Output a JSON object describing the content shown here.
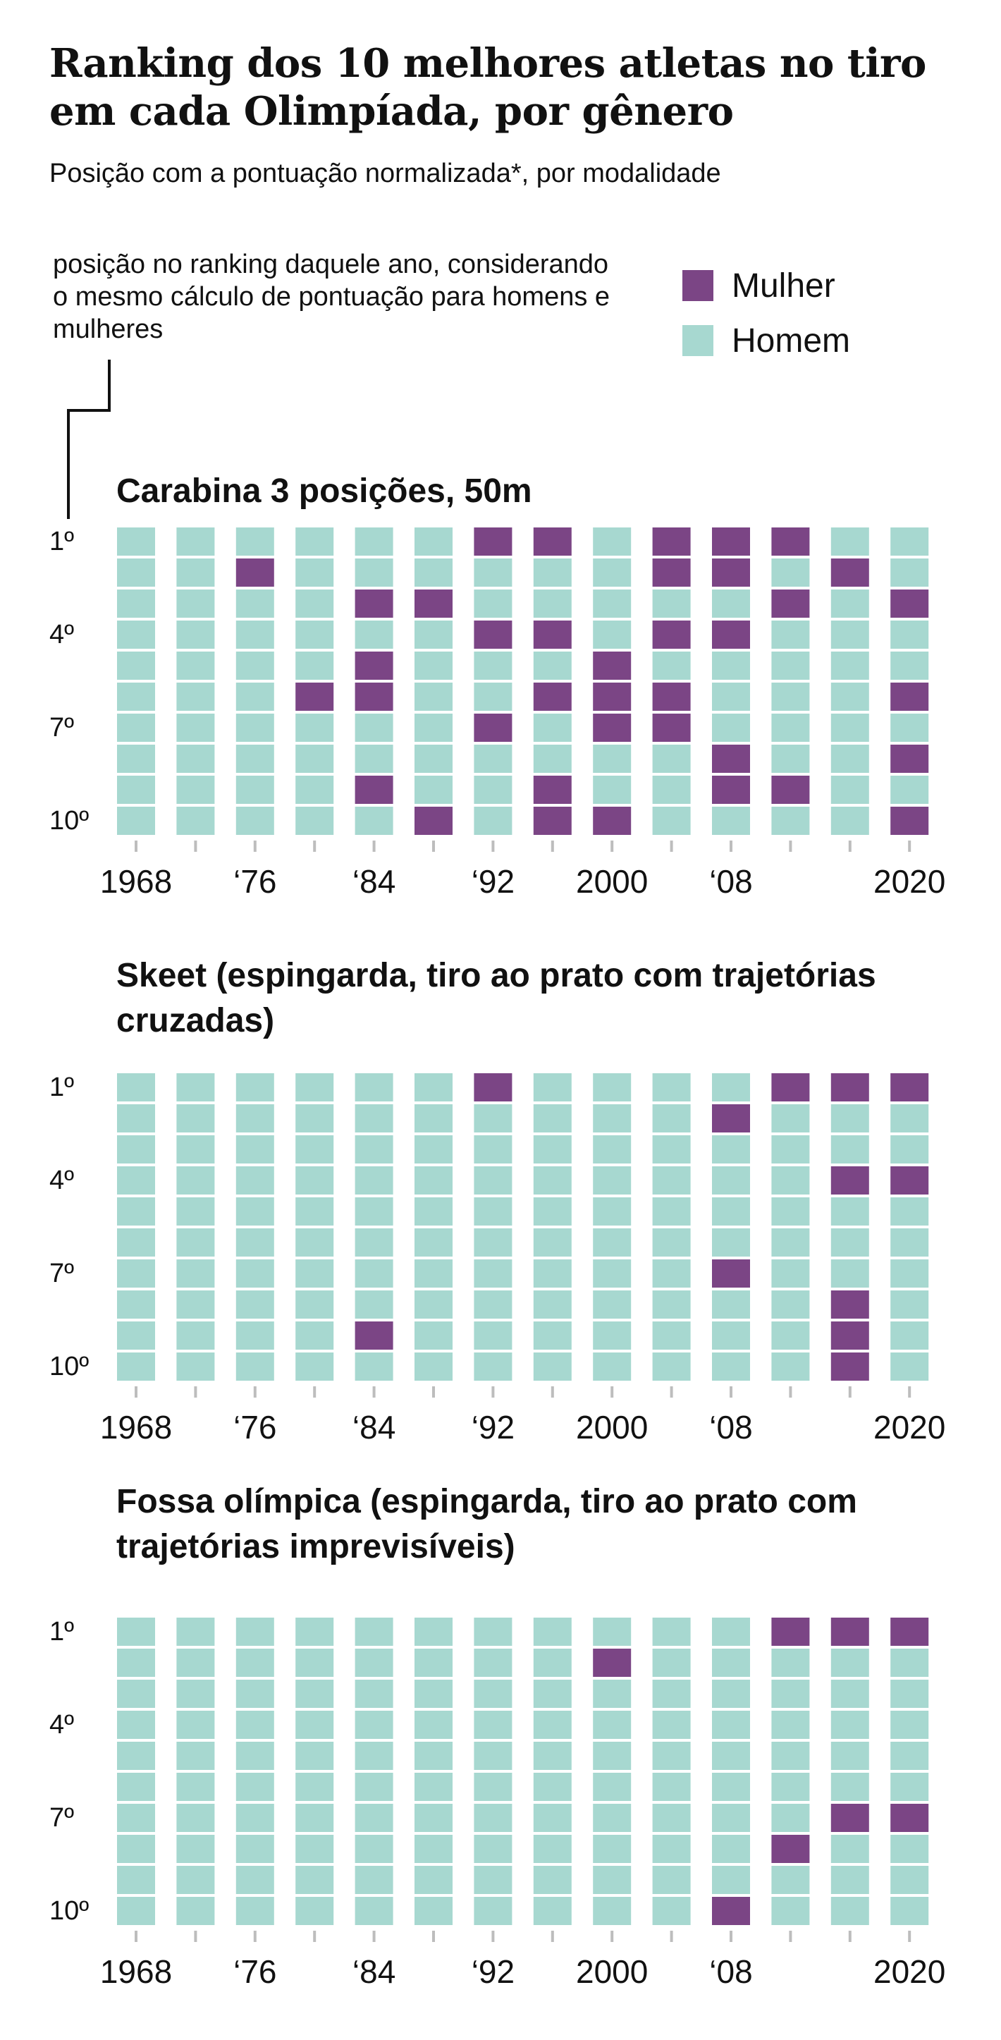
{
  "title": "Ranking dos 10 melhores atletas no tiro em cada Olimpíada, por gênero",
  "subtitle": "Posição com a pontuação normalizada*, por modalidade",
  "note": "posição no ranking daquele ano, considerando o mesmo cálculo de pontuação para homens e mulheres",
  "legend": [
    {
      "label": "Mulher",
      "color": "#7b4585"
    },
    {
      "label": "Homem",
      "color": "#a7d8d0"
    }
  ],
  "colors": {
    "woman": "#7b4585",
    "man": "#a7d8d0",
    "axis": "#bdbdbd",
    "leader": "#111111"
  },
  "chart_data": [
    {
      "type": "waffle",
      "title": "Carabina 3 posições, 50m",
      "subtitle": "",
      "years": [
        1968,
        1972,
        1976,
        1980,
        1984,
        1988,
        1992,
        1996,
        2000,
        2004,
        2008,
        2012,
        2016,
        2020
      ],
      "x_tick_labels": [
        "1968",
        "",
        "‘76",
        "",
        "‘84",
        "",
        "‘92",
        "",
        "2000",
        "",
        "‘08",
        "",
        "",
        "2020"
      ],
      "y_tick_labels": [
        "1º",
        "",
        "",
        "4º",
        "",
        "",
        "7º",
        "",
        "",
        "10º"
      ],
      "women_positions": [
        [],
        [],
        [
          2
        ],
        [
          6
        ],
        [
          3,
          5,
          6,
          9
        ],
        [
          3,
          10
        ],
        [
          1,
          4,
          7
        ],
        [
          1,
          4,
          6,
          9,
          10
        ],
        [
          5,
          6,
          7,
          10
        ],
        [
          1,
          2,
          4,
          6,
          7
        ],
        [
          1,
          2,
          4,
          8,
          9
        ],
        [
          1,
          3,
          9
        ],
        [
          2
        ],
        [
          3,
          6,
          8,
          10
        ]
      ]
    },
    {
      "type": "waffle",
      "title": "Skeet",
      "subtitle": "(espingarda, tiro ao prato com trajetórias cruzadas)",
      "years": [
        1968,
        1972,
        1976,
        1980,
        1984,
        1988,
        1992,
        1996,
        2000,
        2004,
        2008,
        2012,
        2016,
        2020
      ],
      "x_tick_labels": [
        "1968",
        "",
        "‘76",
        "",
        "‘84",
        "",
        "‘92",
        "",
        "2000",
        "",
        "‘08",
        "",
        "",
        "2020"
      ],
      "y_tick_labels": [
        "1º",
        "",
        "",
        "4º",
        "",
        "",
        "7º",
        "",
        "",
        "10º"
      ],
      "women_positions": [
        [],
        [],
        [],
        [],
        [
          9
        ],
        [],
        [
          1
        ],
        [],
        [],
        [],
        [
          2,
          7
        ],
        [
          1
        ],
        [
          1,
          4,
          8,
          9,
          10
        ],
        [
          1,
          4
        ]
      ]
    },
    {
      "type": "waffle",
      "title": "Fossa olímpica",
      "subtitle": "(espingarda, tiro ao prato com trajetórias imprevisíveis)",
      "years": [
        1968,
        1972,
        1976,
        1980,
        1984,
        1988,
        1992,
        1996,
        2000,
        2004,
        2008,
        2012,
        2016,
        2020
      ],
      "x_tick_labels": [
        "1968",
        "",
        "‘76",
        "",
        "‘84",
        "",
        "‘92",
        "",
        "2000",
        "",
        "‘08",
        "",
        "",
        "2020"
      ],
      "y_tick_labels": [
        "1º",
        "",
        "",
        "4º",
        "",
        "",
        "7º",
        "",
        "",
        "10º"
      ],
      "women_positions": [
        [],
        [],
        [],
        [],
        [],
        [],
        [],
        [],
        [
          2
        ],
        [],
        [
          10
        ],
        [
          1,
          8
        ],
        [
          1,
          7
        ],
        [
          1,
          7
        ]
      ]
    }
  ]
}
